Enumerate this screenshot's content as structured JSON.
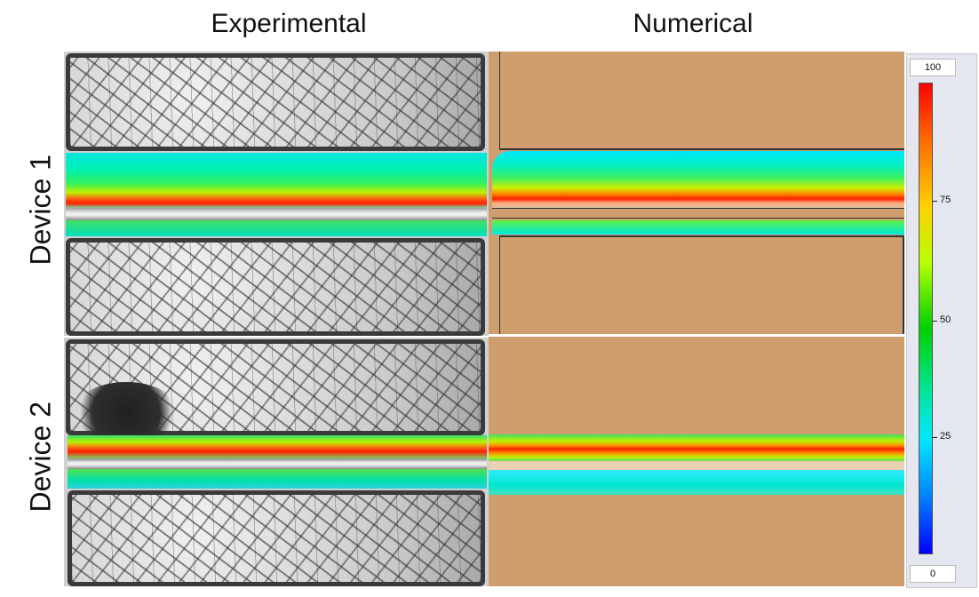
{
  "columns": {
    "experimental": "Experimental",
    "numerical": "Numerical"
  },
  "rows": {
    "device1": "Device 1",
    "device2": "Device 2"
  },
  "colorbar": {
    "max_label": "100",
    "min_label": "0",
    "ticks": [
      "75",
      "50",
      "25"
    ],
    "colors": [
      "#ff0000",
      "#ffd000",
      "#00d000",
      "#00e6ff",
      "#0000ff"
    ]
  },
  "colors": {
    "tan": "#cf9e6f",
    "frame": "#3a3a3a"
  }
}
